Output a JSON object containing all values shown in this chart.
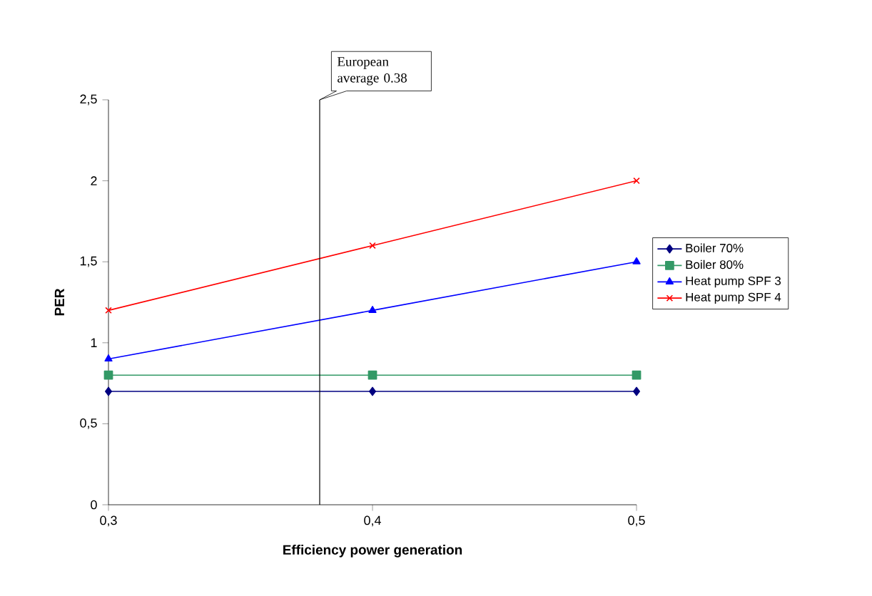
{
  "chart_data": {
    "type": "line",
    "xlabel": "Efficiency power generation",
    "ylabel": "PER",
    "x": [
      0.3,
      0.4,
      0.5
    ],
    "series": [
      {
        "name": "Boiler 70%",
        "color": "#000080",
        "marker": "diamond",
        "values": [
          0.7,
          0.7,
          0.7
        ]
      },
      {
        "name": "Boiler 80%",
        "color": "#339966",
        "marker": "square",
        "values": [
          0.8,
          0.8,
          0.8
        ]
      },
      {
        "name": "Heat pump SPF 3",
        "color": "#0000ff",
        "marker": "triangle",
        "values": [
          0.9,
          1.2,
          1.5
        ]
      },
      {
        "name": "Heat pump SPF 4",
        "color": "#ff0000",
        "marker": "cross",
        "values": [
          1.2,
          1.6,
          2.0
        ]
      }
    ],
    "xlim": [
      0.3,
      0.5
    ],
    "xticks": [
      {
        "value": 0.3,
        "label": "0,3"
      },
      {
        "value": 0.4,
        "label": "0,4"
      },
      {
        "value": 0.5,
        "label": "0,5"
      }
    ],
    "ylim": [
      0,
      2.5
    ],
    "yticks": [
      {
        "value": 0,
        "label": "0"
      },
      {
        "value": 0.5,
        "label": "0,5"
      },
      {
        "value": 1,
        "label": "1"
      },
      {
        "value": 1.5,
        "label": "1,5"
      },
      {
        "value": 2,
        "label": "2"
      },
      {
        "value": 2.5,
        "label": "2,5"
      }
    ],
    "ref_lines": [
      {
        "axis": "x",
        "value": 0.38,
        "label": "European average 0.38"
      }
    ],
    "grid": false,
    "legend": "right",
    "line_style": "solid"
  }
}
